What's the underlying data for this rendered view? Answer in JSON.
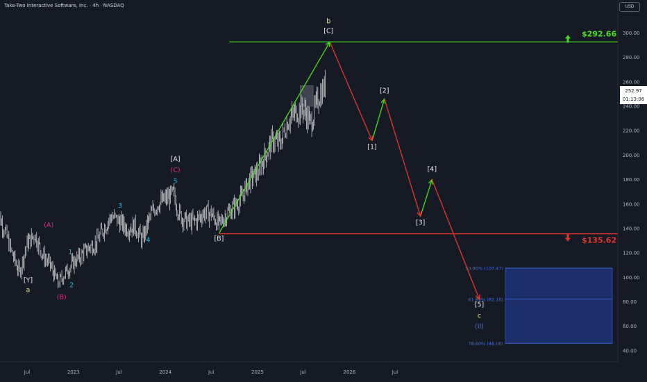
{
  "header": {
    "title": "Take-Two Interactive Software, Inc. · 4h · NASDAQ",
    "currency": "USD",
    "last_price": "252.97",
    "countdown": "01:13:06"
  },
  "colors": {
    "background": "#161a25",
    "candles": "#e6e6e6",
    "up_arrow": "#49e01a",
    "down_arrow": "#e5372f",
    "target_line_green": "#49e01a",
    "target_line_red": "#e5372f",
    "fib_box": "#1e3a8a",
    "fib_text": "#3c73e8",
    "wave_cyan": "#28b8d8",
    "wave_magenta": "#d4307e",
    "wave_white": "#e6e6e6",
    "wave_yellow": "#f0e68c"
  },
  "chart_data": {
    "type": "line",
    "title": "Take-Two Interactive Software, Inc. · 4h · NASDAQ",
    "ylim": [
      40,
      310
    ],
    "y_ticks": [
      300,
      280,
      260,
      240,
      220,
      200,
      180,
      160,
      140,
      120,
      100,
      80,
      60,
      40
    ],
    "y_tick_labels": [
      "300.00",
      "280.00",
      "260.00",
      "240.00",
      "220.00",
      "200.00",
      "180.00",
      "160.00",
      "140.00",
      "120.00",
      "100.00",
      "80.00",
      "60.00",
      "40.00"
    ],
    "x_tick_labels": [
      "Jul",
      "2023",
      "Jul",
      "2024",
      "Jul",
      "2025",
      "Jul",
      "2026",
      "Jul"
    ],
    "x_tick_dates": [
      "2022-07-01",
      "2023-01-01",
      "2023-07-01",
      "2024-01-01",
      "2024-07-01",
      "2025-01-01",
      "2025-07-01",
      "2026-01-01",
      "2026-07-01"
    ],
    "price_series": {
      "dates": [
        "2022-03-01",
        "2022-04-01",
        "2022-05-01",
        "2022-06-01",
        "2022-07-01",
        "2022-08-01",
        "2022-09-01",
        "2022-10-01",
        "2022-11-01",
        "2022-12-01",
        "2023-01-01",
        "2023-02-01",
        "2023-03-01",
        "2023-04-01",
        "2023-05-01",
        "2023-06-01",
        "2023-07-01",
        "2023-08-01",
        "2023-09-01",
        "2023-10-01",
        "2023-11-01",
        "2023-12-01",
        "2024-01-01",
        "2024-02-01",
        "2024-03-01",
        "2024-04-01",
        "2024-05-01",
        "2024-06-01",
        "2024-07-01",
        "2024-08-01",
        "2024-09-01",
        "2024-10-01",
        "2024-11-01",
        "2024-12-01",
        "2025-01-01",
        "2025-02-01",
        "2025-03-01",
        "2025-04-01",
        "2025-05-01",
        "2025-06-01",
        "2025-07-01",
        "2025-08-01",
        "2025-09-01",
        "2025-10-01"
      ],
      "values": [
        155,
        140,
        120,
        104,
        128,
        135,
        118,
        110,
        95,
        104,
        112,
        118,
        124,
        128,
        140,
        150,
        146,
        140,
        142,
        130,
        150,
        160,
        164,
        168,
        150,
        145,
        146,
        153,
        152,
        143,
        152,
        158,
        166,
        180,
        186,
        200,
        212,
        210,
        228,
        235,
        238,
        226,
        248,
        258
      ]
    },
    "reference_levels": [
      {
        "value": 292.66,
        "label": "$292.66",
        "direction": "up"
      },
      {
        "value": 135.62,
        "label": "$135.62",
        "direction": "down"
      }
    ],
    "fibonacci_zone": {
      "top": 107.47,
      "bottom": 46.0,
      "levels": [
        {
          "label": "50.00% (107.47)",
          "value": 107.47
        },
        {
          "label": "61.80% (82.10)",
          "value": 82.1
        },
        {
          "label": "78.60% (46.00)",
          "value": 46.0
        }
      ]
    },
    "resistance_box": {
      "from": "2025-06-20",
      "to": "2025-08-10",
      "top": 257,
      "bottom": 240
    },
    "projection_up": [
      {
        "from": [
          "2024-08-01",
          136
        ],
        "to": [
          "2025-10-15",
          292.66
        ]
      },
      {
        "from": [
          "2026-04-01",
          212
        ],
        "to": [
          "2026-05-20",
          246
        ]
      },
      {
        "from": [
          "2026-10-10",
          150
        ],
        "to": [
          "2026-11-25",
          180
        ]
      }
    ],
    "projection_down": [
      {
        "from": [
          "2025-10-15",
          292.66
        ],
        "to": [
          "2026-04-01",
          212
        ]
      },
      {
        "from": [
          "2026-05-20",
          246
        ],
        "to": [
          "2026-10-10",
          150
        ]
      },
      {
        "from": [
          "2026-11-25",
          180
        ],
        "to": [
          "2027-06-01",
          82
        ]
      }
    ],
    "wave_labels": [
      {
        "text": "[Y]",
        "date": "2022-07-05",
        "price": 96,
        "color": "white"
      },
      {
        "text": "a",
        "date": "2022-07-05",
        "price": 88,
        "color": "yellow"
      },
      {
        "text": "(A)",
        "date": "2022-09-25",
        "price": 141,
        "color": "magenta"
      },
      {
        "text": "(B)",
        "date": "2022-11-15",
        "price": 82,
        "color": "magenta"
      },
      {
        "text": "1",
        "date": "2022-12-20",
        "price": 119,
        "color": "cyan"
      },
      {
        "text": "2",
        "date": "2022-12-25",
        "price": 92,
        "color": "cyan"
      },
      {
        "text": "3",
        "date": "2023-07-05",
        "price": 157,
        "color": "cyan"
      },
      {
        "text": "4",
        "date": "2023-10-25",
        "price": 129,
        "color": "cyan"
      },
      {
        "text": "5",
        "date": "2024-02-10",
        "price": 177,
        "color": "cyan"
      },
      {
        "text": "[A]",
        "date": "2024-02-10",
        "price": 195,
        "color": "white"
      },
      {
        "text": "(C)",
        "date": "2024-02-10",
        "price": 186,
        "color": "magenta"
      },
      {
        "text": "[B]",
        "date": "2024-08-01",
        "price": 130,
        "color": "white"
      },
      {
        "text": "b",
        "date": "2025-10-10",
        "price": 308,
        "color": "yellow"
      },
      {
        "text": "[C]",
        "date": "2025-10-10",
        "price": 300,
        "color": "white"
      },
      {
        "text": "[1]",
        "date": "2026-04-01",
        "price": 205,
        "color": "white"
      },
      {
        "text": "[2]",
        "date": "2026-05-20",
        "price": 251,
        "color": "white"
      },
      {
        "text": "[3]",
        "date": "2026-10-10",
        "price": 143,
        "color": "white"
      },
      {
        "text": "[4]",
        "date": "2026-11-25",
        "price": 187,
        "color": "white"
      },
      {
        "text": "[5]",
        "date": "2027-06-01",
        "price": 76,
        "color": "white"
      },
      {
        "text": "c",
        "date": "2027-06-01",
        "price": 67,
        "color": "yellow"
      },
      {
        "text": "(II)",
        "date": "2027-06-01",
        "price": 58,
        "color": "fib"
      }
    ]
  }
}
